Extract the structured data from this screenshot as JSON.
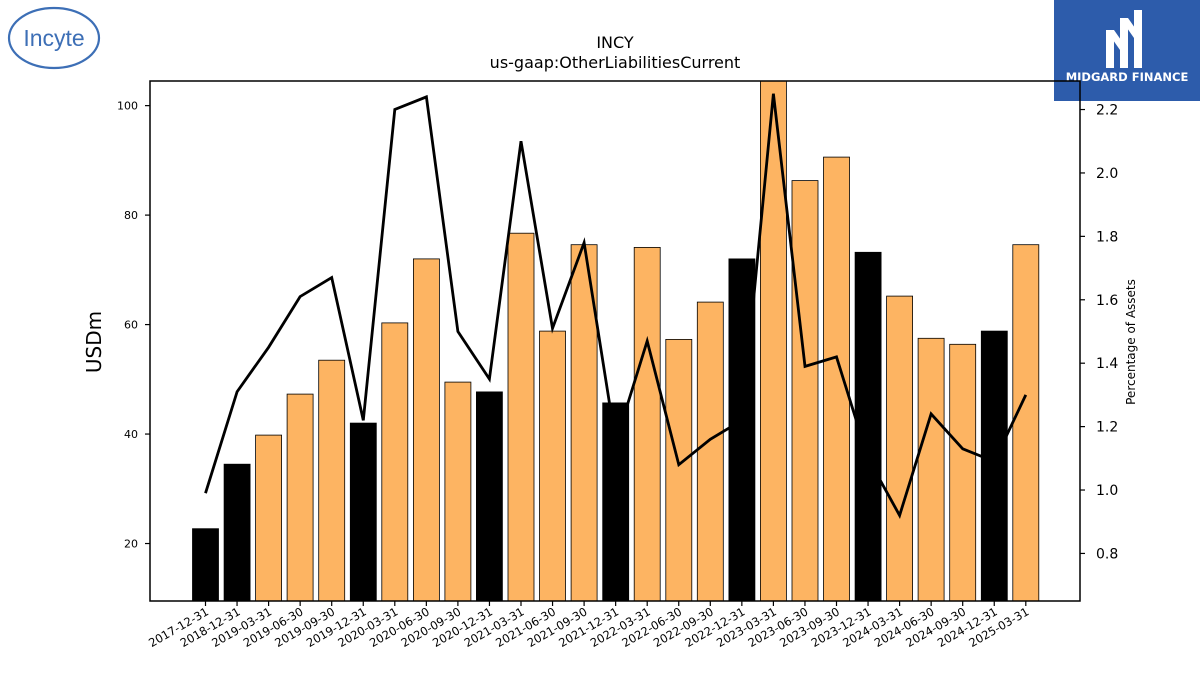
{
  "branding": {
    "company_logo_text": "Incyte",
    "company_logo_color": "#3d6fb6",
    "publisher_logo_text": "MIDGARD FINANCE",
    "publisher_logo_bg": "#2d5cab"
  },
  "chart_data": {
    "type": "bar",
    "title": "INCY",
    "subtitle": "us-gaap:OtherLiabilitiesCurrent",
    "ylabel": "USDm",
    "y2label": "Percentage of Assets",
    "ylim": [
      9.5,
      104.5
    ],
    "y2lim": [
      0.65,
      2.29
    ],
    "yticks": [
      20,
      40,
      60,
      80,
      100
    ],
    "y2ticks": [
      "0.8",
      "1.0",
      "1.2",
      "1.4",
      "1.6",
      "1.8",
      "2.0",
      "2.2"
    ],
    "grid": false,
    "colors": {
      "annual_bar": "#000000",
      "quarter_bar": "#fdb462",
      "line": "#000000"
    },
    "categories": [
      "2017-12-31",
      "2018-12-31",
      "2019-03-31",
      "2019-06-30",
      "2019-09-30",
      "2019-12-31",
      "2020-03-31",
      "2020-06-30",
      "2020-09-30",
      "2020-12-31",
      "2021-03-31",
      "2021-06-30",
      "2021-09-30",
      "2021-12-31",
      "2022-03-31",
      "2022-06-30",
      "2022-09-30",
      "2022-12-31",
      "2023-03-31",
      "2023-06-30",
      "2023-09-30",
      "2023-12-31",
      "2024-03-31",
      "2024-06-30",
      "2024-09-30",
      "2024-12-31",
      "2025-03-31"
    ],
    "series": [
      {
        "kind": "bar",
        "values": [
          22.7,
          34.5,
          39.8,
          47.3,
          53.5,
          42.0,
          60.3,
          72.0,
          49.5,
          47.7,
          76.7,
          58.8,
          74.6,
          45.7,
          74.1,
          57.3,
          64.1,
          72.0,
          104.5,
          86.3,
          90.6,
          73.2,
          65.2,
          57.5,
          56.4,
          58.8,
          74.6
        ],
        "period": [
          "annual",
          "annual",
          "quarter",
          "quarter",
          "quarter",
          "annual",
          "quarter",
          "quarter",
          "quarter",
          "annual",
          "quarter",
          "quarter",
          "quarter",
          "annual",
          "quarter",
          "quarter",
          "quarter",
          "annual",
          "quarter",
          "quarter",
          "quarter",
          "annual",
          "quarter",
          "quarter",
          "quarter",
          "annual",
          "quarter"
        ]
      },
      {
        "kind": "line",
        "axis": "right",
        "values": [
          0.99,
          1.31,
          1.45,
          1.61,
          1.67,
          1.22,
          2.2,
          2.24,
          1.5,
          1.35,
          2.1,
          1.51,
          1.78,
          1.15,
          1.47,
          1.08,
          1.16,
          1.22,
          2.25,
          1.39,
          1.42,
          1.1,
          0.92,
          1.24,
          1.13,
          1.09,
          1.3
        ]
      }
    ]
  }
}
